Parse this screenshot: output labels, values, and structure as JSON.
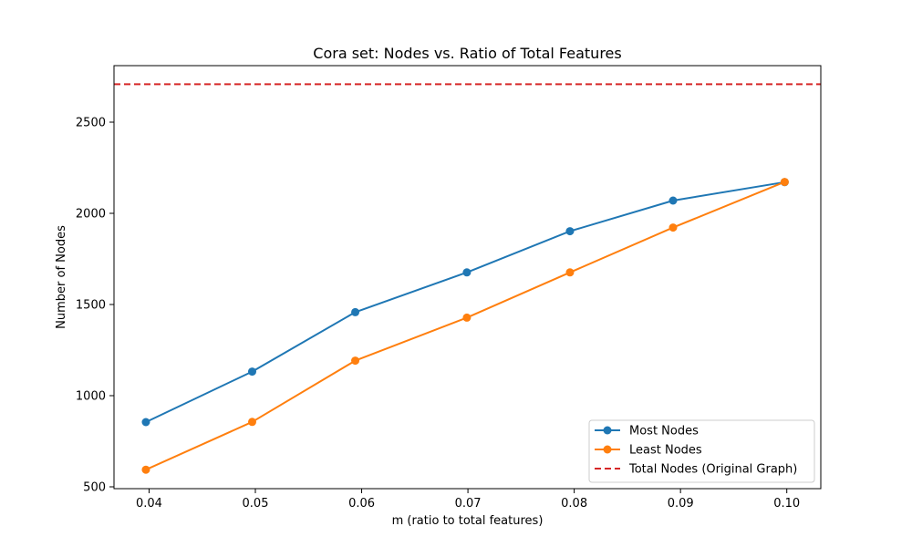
{
  "chart_data": {
    "type": "line",
    "title": "Cora set: Nodes vs. Ratio of Total Features",
    "xlabel": "m (ratio to total features)",
    "ylabel": "Number of Nodes",
    "xlim": [
      0.0367,
      0.1032
    ],
    "ylim": [
      490,
      2810
    ],
    "xticks": [
      0.04,
      0.05,
      0.06,
      0.07,
      0.08,
      0.09,
      0.1
    ],
    "xtick_labels": [
      "0.04",
      "0.05",
      "0.06",
      "0.07",
      "0.08",
      "0.09",
      "0.10"
    ],
    "yticks": [
      500,
      1000,
      1500,
      2000,
      2500
    ],
    "ytick_labels": [
      "500",
      "1000",
      "1500",
      "2000",
      "2500"
    ],
    "grid": false,
    "legend_position": "bottom-right",
    "x": [
      0.0397,
      0.0497,
      0.0594,
      0.0699,
      0.0796,
      0.0893,
      0.0998
    ],
    "series": [
      {
        "name": "Most Nodes",
        "color": "#1f77b4",
        "marker": "circle",
        "linestyle": "solid",
        "values": [
          855,
          1132,
          1458,
          1676,
          1902,
          2070,
          2171
        ]
      },
      {
        "name": "Least Nodes",
        "color": "#ff7f0e",
        "marker": "circle",
        "linestyle": "solid",
        "values": [
          594,
          856,
          1192,
          1428,
          1676,
          1922,
          2172
        ]
      }
    ],
    "reference_lines": [
      {
        "name": "Total Nodes (Original Graph)",
        "color": "#d62728",
        "orientation": "horizontal",
        "linestyle": "dashed",
        "value": 2708
      }
    ]
  }
}
